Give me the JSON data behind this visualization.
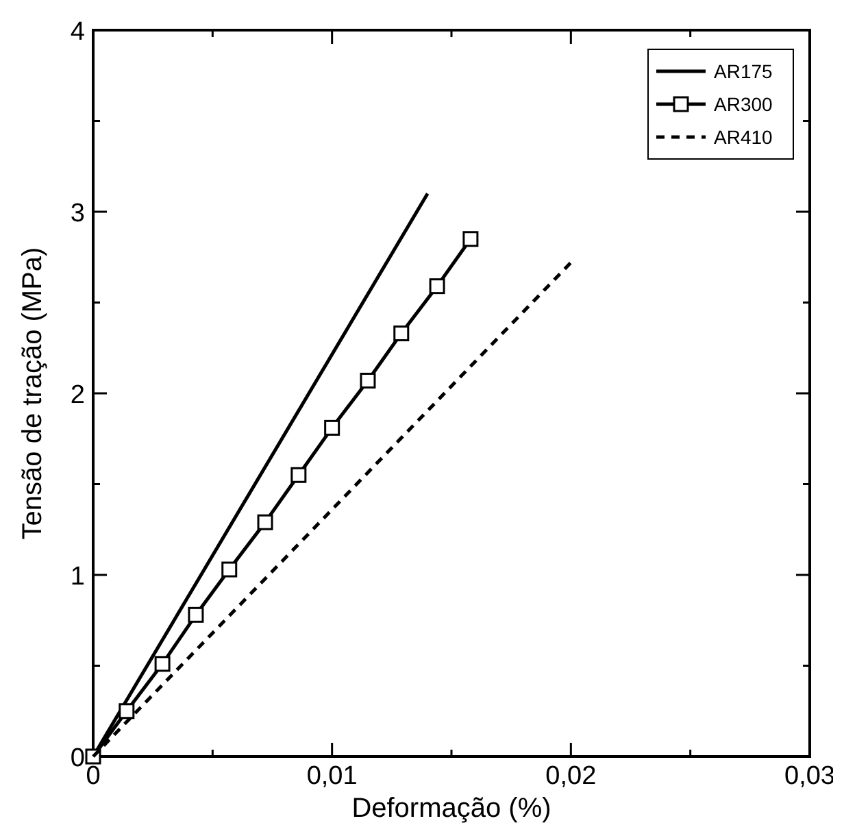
{
  "chart_data": {
    "type": "line",
    "xlabel": "Deformação (%)",
    "ylabel": "Tensão de tração (MPa)",
    "xlim": [
      0,
      0.03
    ],
    "ylim": [
      0,
      4
    ],
    "xticks": [
      {
        "value": 0,
        "label": "0"
      },
      {
        "value": 0.005,
        "label": null
      },
      {
        "value": 0.01,
        "label": "0,01"
      },
      {
        "value": 0.015,
        "label": null
      },
      {
        "value": 0.02,
        "label": "0,02"
      },
      {
        "value": 0.025,
        "label": null
      },
      {
        "value": 0.03,
        "label": "0,03"
      }
    ],
    "yticks": [
      0,
      {
        "value": 0.5,
        "label": null
      },
      1,
      {
        "value": 1.5,
        "label": null
      },
      2,
      {
        "value": 2.5,
        "label": null
      },
      3,
      {
        "value": 3.5,
        "label": null
      },
      4
    ],
    "grid": false,
    "legend": "top right",
    "series": [
      {
        "name": "AR175",
        "color": "#000000",
        "x": [
          0,
          0.014
        ],
        "values": [
          0,
          3.1
        ],
        "line_style": "solid"
      },
      {
        "name": "AR300",
        "color": "#000000",
        "x": [
          0,
          0.0014,
          0.0029,
          0.0043,
          0.0057,
          0.0072,
          0.0086,
          0.01,
          0.0115,
          0.0129,
          0.0144,
          0.0158
        ],
        "values": [
          0,
          0.25,
          0.51,
          0.78,
          1.03,
          1.29,
          1.55,
          1.81,
          2.07,
          2.33,
          2.59,
          2.85
        ],
        "marker": "square",
        "line_style": "solid"
      },
      {
        "name": "AR410",
        "color": "#000000",
        "x": [
          0,
          0.02
        ],
        "values": [
          0,
          2.72
        ],
        "line_style": "dashed"
      }
    ]
  }
}
